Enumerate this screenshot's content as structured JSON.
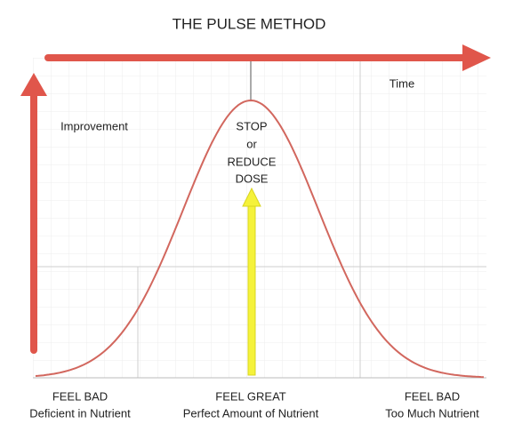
{
  "title": "THE PULSE METHOD",
  "axes": {
    "x_label": "Time",
    "y_label": "Improvement"
  },
  "peak_note": [
    "STOP",
    "or",
    "REDUCE",
    "DOSE"
  ],
  "zones": [
    {
      "title": "FEEL BAD",
      "subtitle": "Deficient in Nutrient"
    },
    {
      "title": "FEEL GREAT",
      "subtitle": "Perfect Amount of Nutrient"
    },
    {
      "title": "FEEL BAD",
      "subtitle": "Too Much Nutrient"
    }
  ]
}
